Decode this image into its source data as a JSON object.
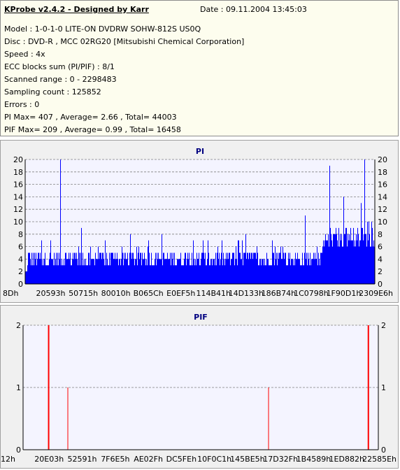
{
  "header": {
    "app_title": "KProbe v2.4.2 - Designed by Karr",
    "date": "Date : 09.11.2004 13:45:03",
    "lines": [
      "Model : 1-0-1-0 LITE-ON DVDRW SOHW-812S  US0Q",
      "Disc : DVD-R , MCC 02RG20   [Mitsubishi Chemical Corporation]",
      "Speed : 4x",
      "ECC blocks sum (PI/PIF) : 8/1",
      "Scanned range : 0 - 2298483",
      "Sampling count : 125852",
      "Errors : 0",
      "PI Max= 407 , Average= 2.66 , Total= 44003",
      "PIF Max= 209 , Average= 0.99 , Total= 16458"
    ]
  },
  "colors": {
    "pi_bars": "#0000ff",
    "pif_bars": "#ff0000",
    "plot_bg": "#f4f4ff",
    "title": "#000080"
  },
  "chart_data": [
    {
      "type": "bar",
      "title": "PI",
      "ylim": [
        0,
        20
      ],
      "y_ticks": [
        0,
        2,
        4,
        6,
        8,
        10,
        12,
        14,
        16,
        18,
        20
      ],
      "x_tick_labels": [
        "8Dh",
        "20593h",
        "50715h",
        "80010h",
        "B065Ch",
        "E0EF5h",
        "114B41h",
        "14D133h",
        "186B74h",
        "1C0798h",
        "1F90D1h",
        "2309E6h"
      ],
      "grid": true,
      "baseline_band": [
        3,
        5
      ],
      "spikes": [
        {
          "x": 0.1,
          "value": 20
        },
        {
          "x": 0.16,
          "value": 9
        },
        {
          "x": 0.3,
          "value": 8
        },
        {
          "x": 0.39,
          "value": 8
        },
        {
          "x": 0.48,
          "value": 7
        },
        {
          "x": 0.63,
          "value": 8
        },
        {
          "x": 0.8,
          "value": 11
        },
        {
          "x": 0.87,
          "value": 19
        },
        {
          "x": 0.91,
          "value": 14
        },
        {
          "x": 0.96,
          "value": 13
        },
        {
          "x": 0.97,
          "value": 20
        }
      ],
      "rising_region": {
        "start": 0.85,
        "end": 1.0,
        "level": [
          6,
          10
        ]
      }
    },
    {
      "type": "bar",
      "title": "PIF",
      "ylim": [
        0,
        2
      ],
      "y_ticks": [
        0,
        1,
        2
      ],
      "x_tick_labels": [
        "12h",
        "20E03h",
        "52591h",
        "7F6E5h",
        "AE02Fh",
        "DC5FEh",
        "10F0C1h",
        "145BE5h",
        "17D32Fh",
        "1B4589h",
        "1ED882h",
        "22585Eh"
      ],
      "grid": true,
      "bars": [
        {
          "x": 0.07,
          "value": 2
        },
        {
          "x": 0.125,
          "value": 1
        },
        {
          "x": 0.69,
          "value": 1
        },
        {
          "x": 0.97,
          "value": 2
        }
      ]
    }
  ]
}
